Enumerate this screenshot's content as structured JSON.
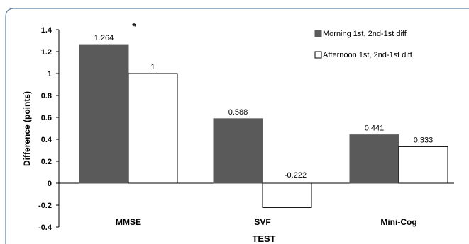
{
  "chart_data": {
    "type": "bar",
    "title": "",
    "xlabel": "TEST",
    "ylabel": "Difference (points)",
    "categories": [
      "MMSE",
      "SVF",
      "Mini-Cog"
    ],
    "ylim": [
      -0.4,
      1.4
    ],
    "yticks": [
      -0.4,
      -0.2,
      0,
      0.2,
      0.4,
      0.6,
      0.8,
      1,
      1.2,
      1.4
    ],
    "ytick_labels": [
      "-0.4",
      "-0.2",
      "0",
      "0.2",
      "0.4",
      "0.6",
      "0.8",
      "1",
      "1.2",
      "1.4"
    ],
    "grid": false,
    "legend_position": "top-right",
    "series": [
      {
        "name": "Morning 1st, 2nd-1st diff",
        "color": "#5a5a5a",
        "values": [
          1.264,
          0.588,
          0.441
        ],
        "labels": [
          "1.264",
          "0.588",
          "0.441"
        ]
      },
      {
        "name": "Afternoon  1st, 2nd-1st diff",
        "color": "#ffffff",
        "values": [
          1,
          -0.222,
          0.333
        ],
        "labels": [
          "1",
          "-0.222",
          "0.333"
        ]
      }
    ],
    "annotations": [
      {
        "text": "*",
        "category": "MMSE"
      }
    ]
  },
  "colors": {
    "frame": "#5b7fa6",
    "bar_outline": "#000000",
    "axis": "#000000"
  }
}
